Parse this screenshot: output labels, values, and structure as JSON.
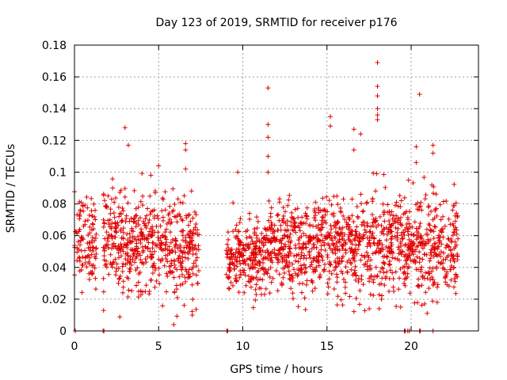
{
  "chart_data": {
    "type": "scatter",
    "title": "Day 123 of 2019, SRMTID for receiver p176",
    "xlabel": "GPS time / hours",
    "ylabel": "SRMTID / TECUs",
    "xlim": [
      0,
      24
    ],
    "ylim": [
      0,
      0.18
    ],
    "xticks": [
      0,
      5,
      10,
      15,
      20
    ],
    "xtick_labels": [
      "0",
      "5",
      "10",
      "15",
      "20"
    ],
    "yticks": [
      0,
      0.02,
      0.04,
      0.06,
      0.08,
      0.1,
      0.12,
      0.14,
      0.16,
      0.18
    ],
    "ytick_labels": [
      "0",
      "0.02",
      "0.04",
      "0.06",
      "0.08",
      "0.1",
      "0.12",
      "0.14",
      "0.16",
      "0.18"
    ],
    "grid": true,
    "marker": "+",
    "color": "#e00000",
    "series": [
      {
        "name": "SRMTID",
        "segments": [
          {
            "x_range": [
              0.0,
              1.3
            ],
            "mean": 0.058,
            "spread": 0.014,
            "count": 110
          },
          {
            "x_range": [
              1.7,
              4.2
            ],
            "mean": 0.056,
            "spread": 0.015,
            "count": 260
          },
          {
            "x_range": [
              4.2,
              7.4
            ],
            "mean": 0.052,
            "spread": 0.015,
            "count": 300
          },
          {
            "x_range": [
              9.0,
              11.3
            ],
            "mean": 0.046,
            "spread": 0.011,
            "count": 230
          },
          {
            "x_range": [
              11.3,
              13.6
            ],
            "mean": 0.052,
            "spread": 0.014,
            "count": 240
          },
          {
            "x_range": [
              13.6,
              16.5
            ],
            "mean": 0.053,
            "spread": 0.014,
            "count": 300
          },
          {
            "x_range": [
              16.5,
              19.6
            ],
            "mean": 0.055,
            "spread": 0.016,
            "count": 300
          },
          {
            "x_range": [
              19.6,
              22.8
            ],
            "mean": 0.052,
            "spread": 0.016,
            "count": 320
          }
        ],
        "outliers": [
          {
            "x": 0.05,
            "y": 0.0
          },
          {
            "x": 3.0,
            "y": 0.128
          },
          {
            "x": 3.2,
            "y": 0.117
          },
          {
            "x": 5.0,
            "y": 0.104
          },
          {
            "x": 5.9,
            "y": 0.004
          },
          {
            "x": 6.6,
            "y": 0.118
          },
          {
            "x": 6.6,
            "y": 0.114
          },
          {
            "x": 6.6,
            "y": 0.102
          },
          {
            "x": 7.0,
            "y": 0.01
          },
          {
            "x": 9.7,
            "y": 0.1
          },
          {
            "x": 11.5,
            "y": 0.153
          },
          {
            "x": 11.5,
            "y": 0.13
          },
          {
            "x": 11.5,
            "y": 0.122
          },
          {
            "x": 11.5,
            "y": 0.11
          },
          {
            "x": 11.5,
            "y": 0.1
          },
          {
            "x": 15.2,
            "y": 0.135
          },
          {
            "x": 15.2,
            "y": 0.129
          },
          {
            "x": 16.6,
            "y": 0.127
          },
          {
            "x": 16.6,
            "y": 0.114
          },
          {
            "x": 17.0,
            "y": 0.124
          },
          {
            "x": 18.0,
            "y": 0.169
          },
          {
            "x": 18.0,
            "y": 0.154
          },
          {
            "x": 18.0,
            "y": 0.148
          },
          {
            "x": 18.0,
            "y": 0.14
          },
          {
            "x": 18.0,
            "y": 0.136
          },
          {
            "x": 18.0,
            "y": 0.133
          },
          {
            "x": 18.1,
            "y": 0.014
          },
          {
            "x": 20.5,
            "y": 0.149
          },
          {
            "x": 20.3,
            "y": 0.116
          },
          {
            "x": 20.3,
            "y": 0.106
          },
          {
            "x": 20.8,
            "y": 0.017
          },
          {
            "x": 21.3,
            "y": 0.117
          },
          {
            "x": 21.3,
            "y": 0.112
          }
        ],
        "zeros": [
          1.7,
          1.75,
          9.05,
          9.1,
          19.6,
          19.65,
          19.8,
          19.9,
          20.5,
          20.55,
          21.3
        ]
      }
    ]
  }
}
